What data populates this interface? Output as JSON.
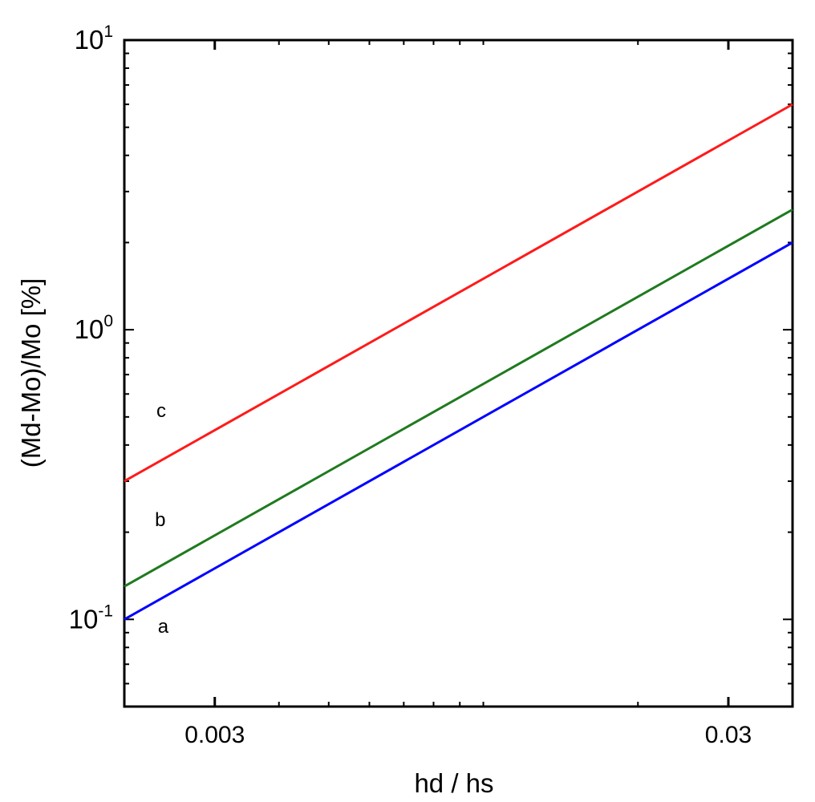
{
  "chart_data": {
    "type": "line",
    "xlabel": "hd / hs",
    "ylabel": "(Md-Mo)/Mo [%]",
    "x_scale": "log",
    "y_scale": "log",
    "xlim": [
      0.002,
      0.04
    ],
    "ylim": [
      0.05,
      10
    ],
    "x_ticks": [
      {
        "value": 0.003,
        "label": "0.003"
      },
      {
        "value": 0.03,
        "label": "0.03"
      }
    ],
    "y_ticks": [
      {
        "value": 0.1,
        "base": "10",
        "exp": "-1"
      },
      {
        "value": 1,
        "base": "10",
        "exp": "0"
      },
      {
        "value": 10,
        "base": "10",
        "exp": "1"
      }
    ],
    "grid": false,
    "series": [
      {
        "name": "a",
        "color": "#0000ff",
        "x": [
          0.002,
          0.04
        ],
        "y": [
          0.1,
          2.0
        ]
      },
      {
        "name": "b",
        "color": "#1f7a1f",
        "x": [
          0.002,
          0.04
        ],
        "y": [
          0.13,
          2.6
        ]
      },
      {
        "name": "c",
        "color": "#ff1a1a",
        "x": [
          0.002,
          0.04
        ],
        "y": [
          0.3,
          6.0
        ]
      }
    ],
    "curve_labels": [
      {
        "text": "a",
        "x": 0.00238,
        "y": 0.09
      },
      {
        "text": "b",
        "x": 0.00235,
        "y": 0.21
      },
      {
        "text": "c",
        "x": 0.00236,
        "y": 0.5
      }
    ]
  }
}
